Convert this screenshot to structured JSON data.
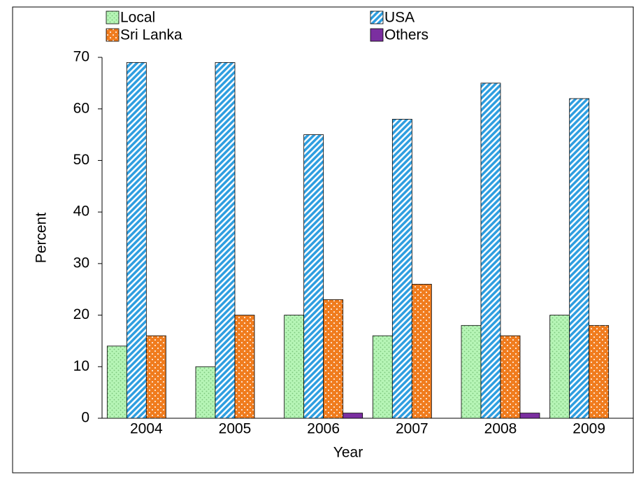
{
  "chart_data": {
    "type": "bar",
    "x_label": "Year",
    "y_label": "Percent",
    "categories": [
      "2004",
      "2005",
      "2006",
      "2007",
      "2008",
      "2009"
    ],
    "series": [
      {
        "name": "Local",
        "color": "#b6f5b6",
        "values": [
          14,
          10,
          20,
          16,
          18,
          20
        ]
      },
      {
        "name": "USA",
        "color": "#2e9ee0",
        "values": [
          69,
          69,
          55,
          58,
          65,
          62
        ]
      },
      {
        "name": "Sri Lanka",
        "color": "#f07c1e",
        "values": [
          16,
          20,
          23,
          26,
          16,
          18
        ]
      },
      {
        "name": "Others",
        "color": "#7b2fa0",
        "values": [
          0,
          0,
          1,
          0,
          1,
          0
        ]
      }
    ],
    "ylim": [
      0,
      70
    ],
    "yticks": [
      0,
      10,
      20,
      30,
      40,
      50,
      60,
      70
    ],
    "legend": "top",
    "grid": false
  }
}
